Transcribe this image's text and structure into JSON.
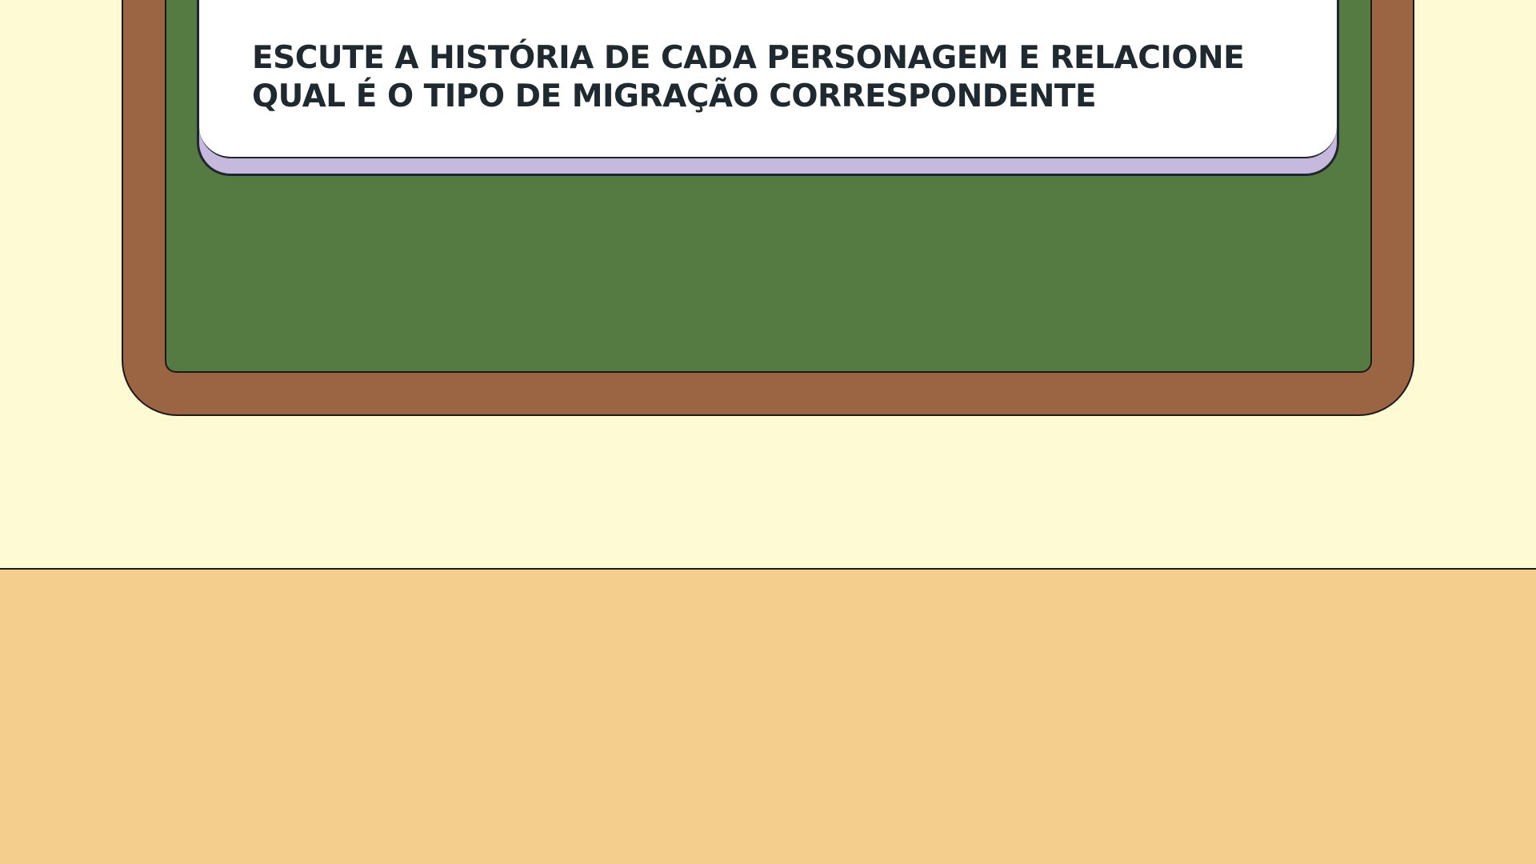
{
  "colors": {
    "wall": "#fefbd4",
    "floor": "#f4ce8c",
    "board_frame": "#9b6443",
    "board_surface": "#567b42",
    "card_face": "#ffffff",
    "card_edge": "#c7b9dd",
    "text": "#1e2a30"
  },
  "instruction": {
    "text": "ESCUTE A HISTÓRIA DE CADA PERSONAGEM E RELACIONE QUAL É O TIPO DE MIGRAÇÃO CORRESPONDENTE"
  }
}
